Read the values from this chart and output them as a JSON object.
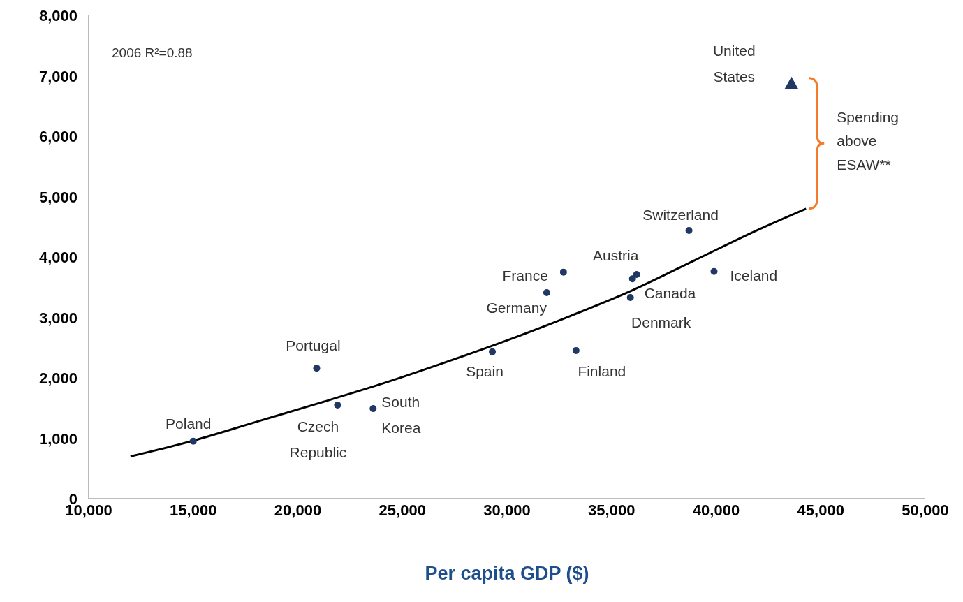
{
  "chart_data": {
    "type": "scatter",
    "xlabel": "Per capita GDP ($)",
    "xlim": [
      10000,
      50000
    ],
    "xticks": [
      {
        "value": 10000,
        "label": "10,000"
      },
      {
        "value": 15000,
        "label": "15,000"
      },
      {
        "value": 20000,
        "label": "20,000"
      },
      {
        "value": 25000,
        "label": "25,000"
      },
      {
        "value": 30000,
        "label": "30,000"
      },
      {
        "value": 35000,
        "label": "35,000"
      },
      {
        "value": 40000,
        "label": "40,000"
      },
      {
        "value": 45000,
        "label": "45,000"
      },
      {
        "value": 50000,
        "label": "50,000"
      }
    ],
    "ylim": [
      0,
      8000
    ],
    "yticks": [
      0,
      {
        "value": 1000,
        "label": "1,000"
      },
      {
        "value": 2000,
        "label": "2,000"
      },
      {
        "value": 3000,
        "label": "3,000"
      },
      {
        "value": 4000,
        "label": "4,000"
      },
      {
        "value": 5000,
        "label": "5,000"
      },
      {
        "value": 6000,
        "label": "6,000"
      },
      {
        "value": 7000,
        "label": "7,000"
      },
      {
        "value": 8000,
        "label": "8,000"
      }
    ],
    "grid": false,
    "legend": false,
    "series": [
      {
        "color": "#1f3864",
        "marker": "circle",
        "x": [
          15000,
          20900,
          21900,
          23600,
          29300,
          31900,
          32700,
          33300,
          36200,
          36000,
          35900,
          38700,
          39900
        ],
        "values": [
          950,
          2160,
          1550,
          1490,
          2430,
          3410,
          3750,
          2450,
          3710,
          3640,
          3330,
          4440,
          3760
        ]
      },
      {
        "color": "#1f3864",
        "marker": "triangle",
        "x": [
          43600
        ],
        "values": [
          6870
        ]
      },
      {
        "type": "line",
        "color": "#000000",
        "line_style": "solid",
        "marker": "none",
        "x": [
          12000,
          15000,
          18000,
          21000,
          24000,
          27000,
          30000,
          33000,
          36000,
          39000,
          42000,
          44300
        ],
        "values": [
          700,
          960,
          1270,
          1580,
          1900,
          2250,
          2620,
          3020,
          3450,
          3950,
          4450,
          4800
        ]
      }
    ],
    "annotations": [
      "2006 R²=0.88",
      "Spending above ESAW**",
      {
        "text": "Poland",
        "x": 15000,
        "y": 950
      },
      {
        "text": "Portugal",
        "x": 20900,
        "y": 2160
      },
      {
        "text": "Czech Republic",
        "x": 21900,
        "y": 1550
      },
      {
        "text": "South Korea",
        "x": 23600,
        "y": 1490
      },
      {
        "text": "Spain",
        "x": 29300,
        "y": 2430
      },
      {
        "text": "Germany",
        "x": 31900,
        "y": 3410
      },
      {
        "text": "France",
        "x": 32700,
        "y": 3750
      },
      {
        "text": "Finland",
        "x": 33300,
        "y": 2450
      },
      {
        "text": "Austria",
        "x": 36200,
        "y": 3710
      },
      {
        "text": "Canada",
        "x": 36000,
        "y": 3640
      },
      {
        "text": "Denmark",
        "x": 35900,
        "y": 3330
      },
      {
        "text": "Switzerland",
        "x": 38700,
        "y": 4440
      },
      {
        "text": "Iceland",
        "x": 39900,
        "y": 3760
      },
      {
        "text": "United States",
        "x": 43600,
        "y": 6870
      }
    ]
  }
}
